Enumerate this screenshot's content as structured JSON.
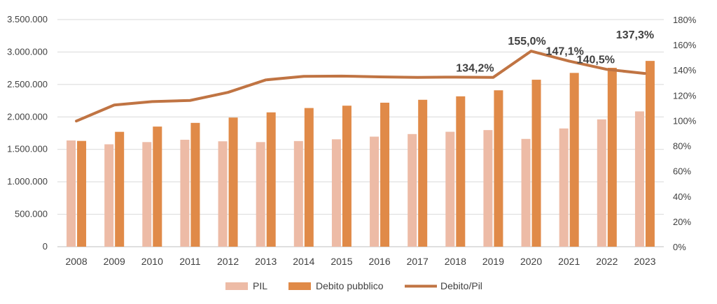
{
  "chart_data": {
    "type": "bar",
    "categories": [
      "2008",
      "2009",
      "2010",
      "2011",
      "2012",
      "2013",
      "2014",
      "2015",
      "2016",
      "2017",
      "2018",
      "2019",
      "2020",
      "2021",
      "2022",
      "2023"
    ],
    "series": [
      {
        "name": "PIL",
        "kind": "bar",
        "axis": "left",
        "color": "#EDBBA6",
        "values": [
          1637000,
          1578000,
          1612000,
          1648000,
          1624000,
          1612000,
          1628000,
          1655000,
          1696000,
          1736000,
          1771000,
          1797000,
          1661000,
          1822000,
          1962000,
          2085000
        ]
      },
      {
        "name": "Debito pubblico",
        "kind": "bar",
        "axis": "left",
        "color": "#E08A48",
        "values": [
          1630000,
          1770000,
          1851000,
          1908000,
          1990000,
          2070000,
          2137000,
          2173000,
          2219000,
          2264000,
          2317000,
          2410000,
          2573000,
          2678000,
          2757000,
          2863000
        ]
      },
      {
        "name": "Debito/Pil",
        "kind": "line",
        "axis": "right",
        "color": "#C07443",
        "values": [
          99.6,
          112.3,
          115.0,
          115.9,
          122.3,
          132.2,
          135.0,
          135.2,
          134.6,
          134.2,
          134.4,
          134.2,
          155.0,
          147.1,
          140.5,
          137.3
        ]
      }
    ],
    "left_axis": {
      "min": 0,
      "max": 3500000,
      "ticks": [
        "0",
        "500.000",
        "1.000.000",
        "1.500.000",
        "2.000.000",
        "2.500.000",
        "3.000.000",
        "3.500.000"
      ]
    },
    "right_axis": {
      "min": 0,
      "max": 180,
      "ticks": [
        "0%",
        "20%",
        "40%",
        "60%",
        "80%",
        "100%",
        "120%",
        "140%",
        "160%",
        "180%"
      ]
    },
    "data_labels": [
      {
        "category": "2019",
        "text": "134,2%"
      },
      {
        "category": "2020",
        "text": "155,0%"
      },
      {
        "category": "2021",
        "text": "147,1%"
      },
      {
        "category": "2022",
        "text": "140,5%"
      },
      {
        "category": "2023",
        "text": "137,3%"
      }
    ],
    "grid": true,
    "legend_position": "bottom"
  }
}
